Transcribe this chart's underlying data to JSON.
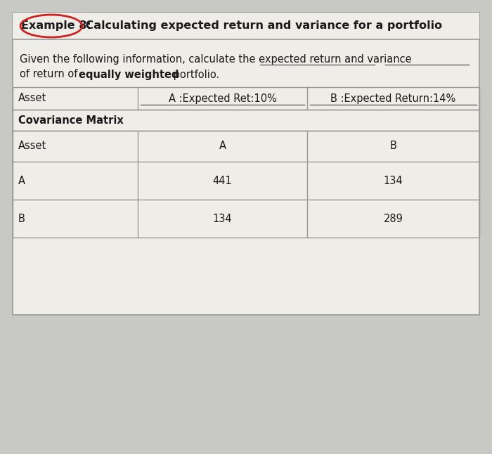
{
  "title_bold": "Example 8:",
  "title_rest": " Calculating expected return and variance for a portfolio",
  "description_line1": "Given the following information, calculate the expected return and variance",
  "description_line2_pre": "of return of ",
  "description_bold": "equally weighted",
  "description_end": " portfolio.",
  "table1_col0": "Asset",
  "table1_col1": "A :Expected Ret:10%",
  "table1_col2": "B :Expected Return:14%",
  "covariance_label": "Covariance Matrix",
  "table2_headers": [
    "Asset",
    "A",
    "B"
  ],
  "table2_row1": [
    "A",
    "441",
    "134"
  ],
  "table2_row2": [
    "B",
    "134",
    "289"
  ],
  "bg_color": "#c8c8c4",
  "paper_color": "#eeede8",
  "text_color": "#1a1a1a",
  "border_color": "#999999",
  "underline_color": "#666666",
  "circle_color": "#cc2222",
  "title_bg_color": "#e8e7e2"
}
